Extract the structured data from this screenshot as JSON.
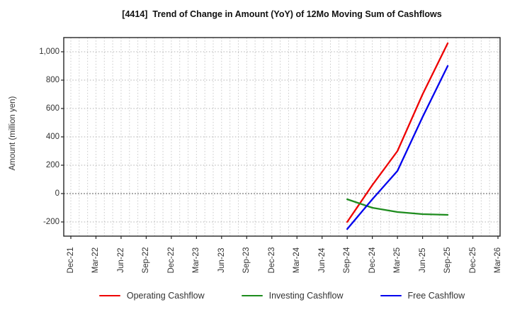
{
  "chart_data": {
    "type": "line",
    "title": "[4414]  Trend of Change in Amount (YoY) of 12Mo Moving Sum of Cashflows",
    "xlabel": "",
    "ylabel": "Amount (million yen)",
    "ylim": [
      -300,
      1100
    ],
    "y_ticks": [
      -200,
      0,
      200,
      400,
      600,
      800,
      1000
    ],
    "y_tick_labels": [
      "-200",
      "0",
      "200",
      "400",
      "600",
      "800",
      "1,000"
    ],
    "x_tick_labels": [
      "Dec-21",
      "Mar-22",
      "Jun-22",
      "Sep-22",
      "Dec-22",
      "Mar-23",
      "Jun-23",
      "Sep-23",
      "Dec-23",
      "Mar-24",
      "Jun-24",
      "Sep-24",
      "Dec-24",
      "Mar-25",
      "Jun-25",
      "Sep-25",
      "Dec-25",
      "Mar-26"
    ],
    "grid": "on, dotted; vertical minor lines monthly, horizontal lines every 200; zero line emphasized",
    "legend_position": "bottom-center",
    "series": [
      {
        "name": "Operating Cashflow",
        "color": "#ee0000",
        "x": [
          "Sep-24",
          "Dec-24",
          "Mar-25",
          "Jun-25",
          "Sep-25"
        ],
        "values": [
          -200,
          60,
          300,
          700,
          1060
        ]
      },
      {
        "name": "Investing Cashflow",
        "color": "#1e8c1e",
        "x": [
          "Sep-24",
          "Dec-24",
          "Mar-25",
          "Jun-25",
          "Sep-25"
        ],
        "values": [
          -40,
          -100,
          -130,
          -145,
          -150
        ]
      },
      {
        "name": "Free Cashflow",
        "color": "#0000ee",
        "x": [
          "Sep-24",
          "Dec-24",
          "Mar-25",
          "Jun-25",
          "Sep-25"
        ],
        "values": [
          -250,
          -40,
          160,
          540,
          900
        ]
      }
    ],
    "axis_color": "#262626"
  }
}
